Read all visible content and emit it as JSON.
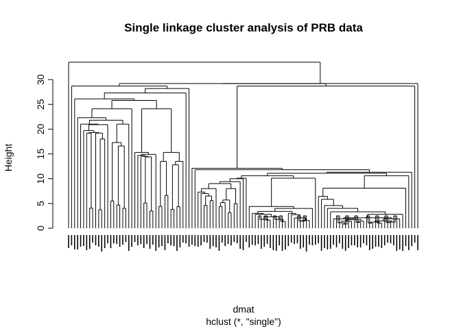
{
  "chart_data": {
    "type": "dendrogram",
    "title": "Single linkage cluster analysis of PRB data",
    "xlabel": "dmat",
    "sub": "hclust (*, \"single\")",
    "ylabel": "Height",
    "ylim": [
      0,
      34
    ],
    "y_ticks": [
      0,
      5,
      10,
      15,
      20,
      25,
      30
    ],
    "leaf_count": 117,
    "merge_heights": [
      33.5,
      29.2,
      28.7,
      28.2,
      27.3,
      26.1,
      25.8,
      24.1,
      22.3,
      21.8,
      21.0,
      20.9,
      19.7,
      19.3,
      19.2,
      18.2,
      18.0,
      17.5,
      17.3,
      16.6,
      15.8,
      15.3,
      14.9,
      14.7,
      14.5,
      14.4,
      13.8,
      13.5,
      13.3,
      12.8,
      12.4,
      12.1,
      11.8,
      11.3,
      11.1,
      10.6,
      10.1,
      10.0,
      9.4,
      9.0,
      8.0,
      7.3,
      7.0,
      6.5,
      6.2,
      5.7,
      5.2,
      4.9,
      4.4,
      4.0,
      3.4,
      3.0
    ]
  }
}
